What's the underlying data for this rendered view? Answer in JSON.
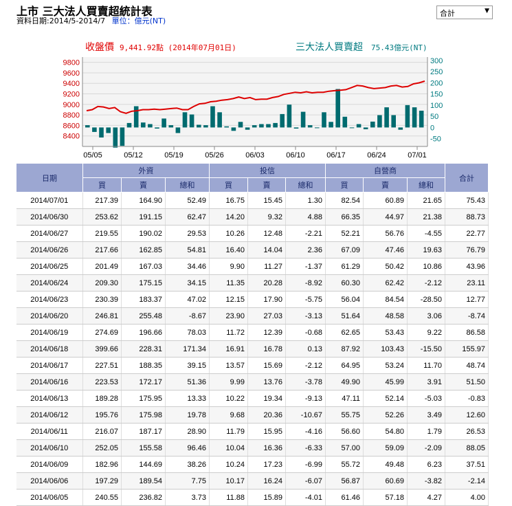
{
  "header": {
    "title": "上市 三大法人買賣超統計表",
    "date_range": "資料日期:2014/5-2014/7",
    "unit": "單位：億元(NT)"
  },
  "selector": {
    "value": "合計"
  },
  "chart_data": {
    "type": "bar+line",
    "left_legend": {
      "label": "收盤價",
      "value": "9,441.92點 (2014年07月01日)",
      "color": "#e00000"
    },
    "right_legend": {
      "label": "三大法人買賣超",
      "value": "75.43億元(NT)",
      "color": "#007a80"
    },
    "x_ticks": [
      "05/05",
      "05/12",
      "05/19",
      "05/26",
      "06/03",
      "06/10",
      "06/17",
      "06/24",
      "07/01"
    ],
    "y_left": {
      "ticks": [
        8400,
        8600,
        8800,
        9000,
        9200,
        9400,
        9600,
        9800
      ],
      "min": 8200,
      "max": 9900
    },
    "y_right": {
      "ticks": [
        -50,
        0,
        50,
        100,
        150,
        200,
        250,
        300
      ],
      "min": -85,
      "max": 315
    },
    "series": [
      {
        "name": "三大法人買賣超",
        "kind": "bar",
        "color": "#006b6f",
        "values": [
          10,
          -20,
          -45,
          -25,
          -90,
          -82,
          20,
          95,
          22,
          15,
          -5,
          40,
          10,
          -25,
          68,
          58,
          12,
          10,
          95,
          68,
          5,
          -15,
          25,
          -10,
          10,
          15,
          15,
          20,
          60,
          102,
          -5,
          70,
          10,
          0,
          68,
          25,
          172,
          48,
          -2,
          15,
          -8,
          26,
          55,
          90,
          55,
          -10,
          100,
          90,
          75
        ]
      },
      {
        "name": "收盤價",
        "kind": "line",
        "color": "#dd0000",
        "values": [
          8880,
          8900,
          8960,
          8950,
          8920,
          8940,
          8860,
          8830,
          8870,
          8880,
          8900,
          8900,
          8910,
          8900,
          8910,
          8920,
          8930,
          8900,
          8900,
          8960,
          9010,
          9020,
          9050,
          9060,
          9080,
          9090,
          9110,
          9140,
          9110,
          9130,
          9090,
          9100,
          9100,
          9130,
          9150,
          9190,
          9210,
          9230,
          9220,
          9240,
          9220,
          9230,
          9230,
          9250,
          9260,
          9270,
          9280,
          9320,
          9360,
          9350,
          9320,
          9300,
          9310,
          9320,
          9350,
          9360,
          9330,
          9340,
          9390,
          9410,
          9441.92
        ]
      }
    ]
  },
  "table": {
    "headers": {
      "date": "日期",
      "foreign": "外資",
      "trust": "投信",
      "dealer": "自營商",
      "total": "合計",
      "buy": "買",
      "sell": "賣",
      "net": "總和"
    },
    "rows": [
      [
        "2014/07/01",
        "217.39",
        "164.90",
        "52.49",
        "16.75",
        "15.45",
        "1.30",
        "82.54",
        "60.89",
        "21.65",
        "75.43"
      ],
      [
        "2014/06/30",
        "253.62",
        "191.15",
        "62.47",
        "14.20",
        "9.32",
        "4.88",
        "66.35",
        "44.97",
        "21.38",
        "88.73"
      ],
      [
        "2014/06/27",
        "219.55",
        "190.02",
        "29.53",
        "10.26",
        "12.48",
        "-2.21",
        "52.21",
        "56.76",
        "-4.55",
        "22.77"
      ],
      [
        "2014/06/26",
        "217.66",
        "162.85",
        "54.81",
        "16.40",
        "14.04",
        "2.36",
        "67.09",
        "47.46",
        "19.63",
        "76.79"
      ],
      [
        "2014/06/25",
        "201.49",
        "167.03",
        "34.46",
        "9.90",
        "11.27",
        "-1.37",
        "61.29",
        "50.42",
        "10.86",
        "43.96"
      ],
      [
        "2014/06/24",
        "209.30",
        "175.15",
        "34.15",
        "11.35",
        "20.28",
        "-8.92",
        "60.30",
        "62.42",
        "-2.12",
        "23.11"
      ],
      [
        "2014/06/23",
        "230.39",
        "183.37",
        "47.02",
        "12.15",
        "17.90",
        "-5.75",
        "56.04",
        "84.54",
        "-28.50",
        "12.77"
      ],
      [
        "2014/06/20",
        "246.81",
        "255.48",
        "-8.67",
        "23.90",
        "27.03",
        "-3.13",
        "51.64",
        "48.58",
        "3.06",
        "-8.74"
      ],
      [
        "2014/06/19",
        "274.69",
        "196.66",
        "78.03",
        "11.72",
        "12.39",
        "-0.68",
        "62.65",
        "53.43",
        "9.22",
        "86.58"
      ],
      [
        "2014/06/18",
        "399.66",
        "228.31",
        "171.34",
        "16.91",
        "16.78",
        "0.13",
        "87.92",
        "103.43",
        "-15.50",
        "155.97"
      ],
      [
        "2014/06/17",
        "227.51",
        "188.35",
        "39.15",
        "13.57",
        "15.69",
        "-2.12",
        "64.95",
        "53.24",
        "11.70",
        "48.74"
      ],
      [
        "2014/06/16",
        "223.53",
        "172.17",
        "51.36",
        "9.99",
        "13.76",
        "-3.78",
        "49.90",
        "45.99",
        "3.91",
        "51.50"
      ],
      [
        "2014/06/13",
        "189.28",
        "175.95",
        "13.33",
        "10.22",
        "19.34",
        "-9.13",
        "47.11",
        "52.14",
        "-5.03",
        "-0.83"
      ],
      [
        "2014/06/12",
        "195.76",
        "175.98",
        "19.78",
        "9.68",
        "20.36",
        "-10.67",
        "55.75",
        "52.26",
        "3.49",
        "12.60"
      ],
      [
        "2014/06/11",
        "216.07",
        "187.17",
        "28.90",
        "11.79",
        "15.95",
        "-4.16",
        "56.60",
        "54.80",
        "1.79",
        "26.53"
      ],
      [
        "2014/06/10",
        "252.05",
        "155.58",
        "96.46",
        "10.04",
        "16.36",
        "-6.33",
        "57.00",
        "59.09",
        "-2.09",
        "88.05"
      ],
      [
        "2014/06/09",
        "182.96",
        "144.69",
        "38.26",
        "10.24",
        "17.23",
        "-6.99",
        "55.72",
        "49.48",
        "6.23",
        "37.51"
      ],
      [
        "2014/06/06",
        "197.29",
        "189.54",
        "7.75",
        "10.17",
        "16.24",
        "-6.07",
        "56.87",
        "60.69",
        "-3.82",
        "-2.14"
      ],
      [
        "2014/06/05",
        "240.55",
        "236.82",
        "3.73",
        "11.88",
        "15.89",
        "-4.01",
        "61.46",
        "57.18",
        "4.27",
        "4.00"
      ]
    ]
  }
}
